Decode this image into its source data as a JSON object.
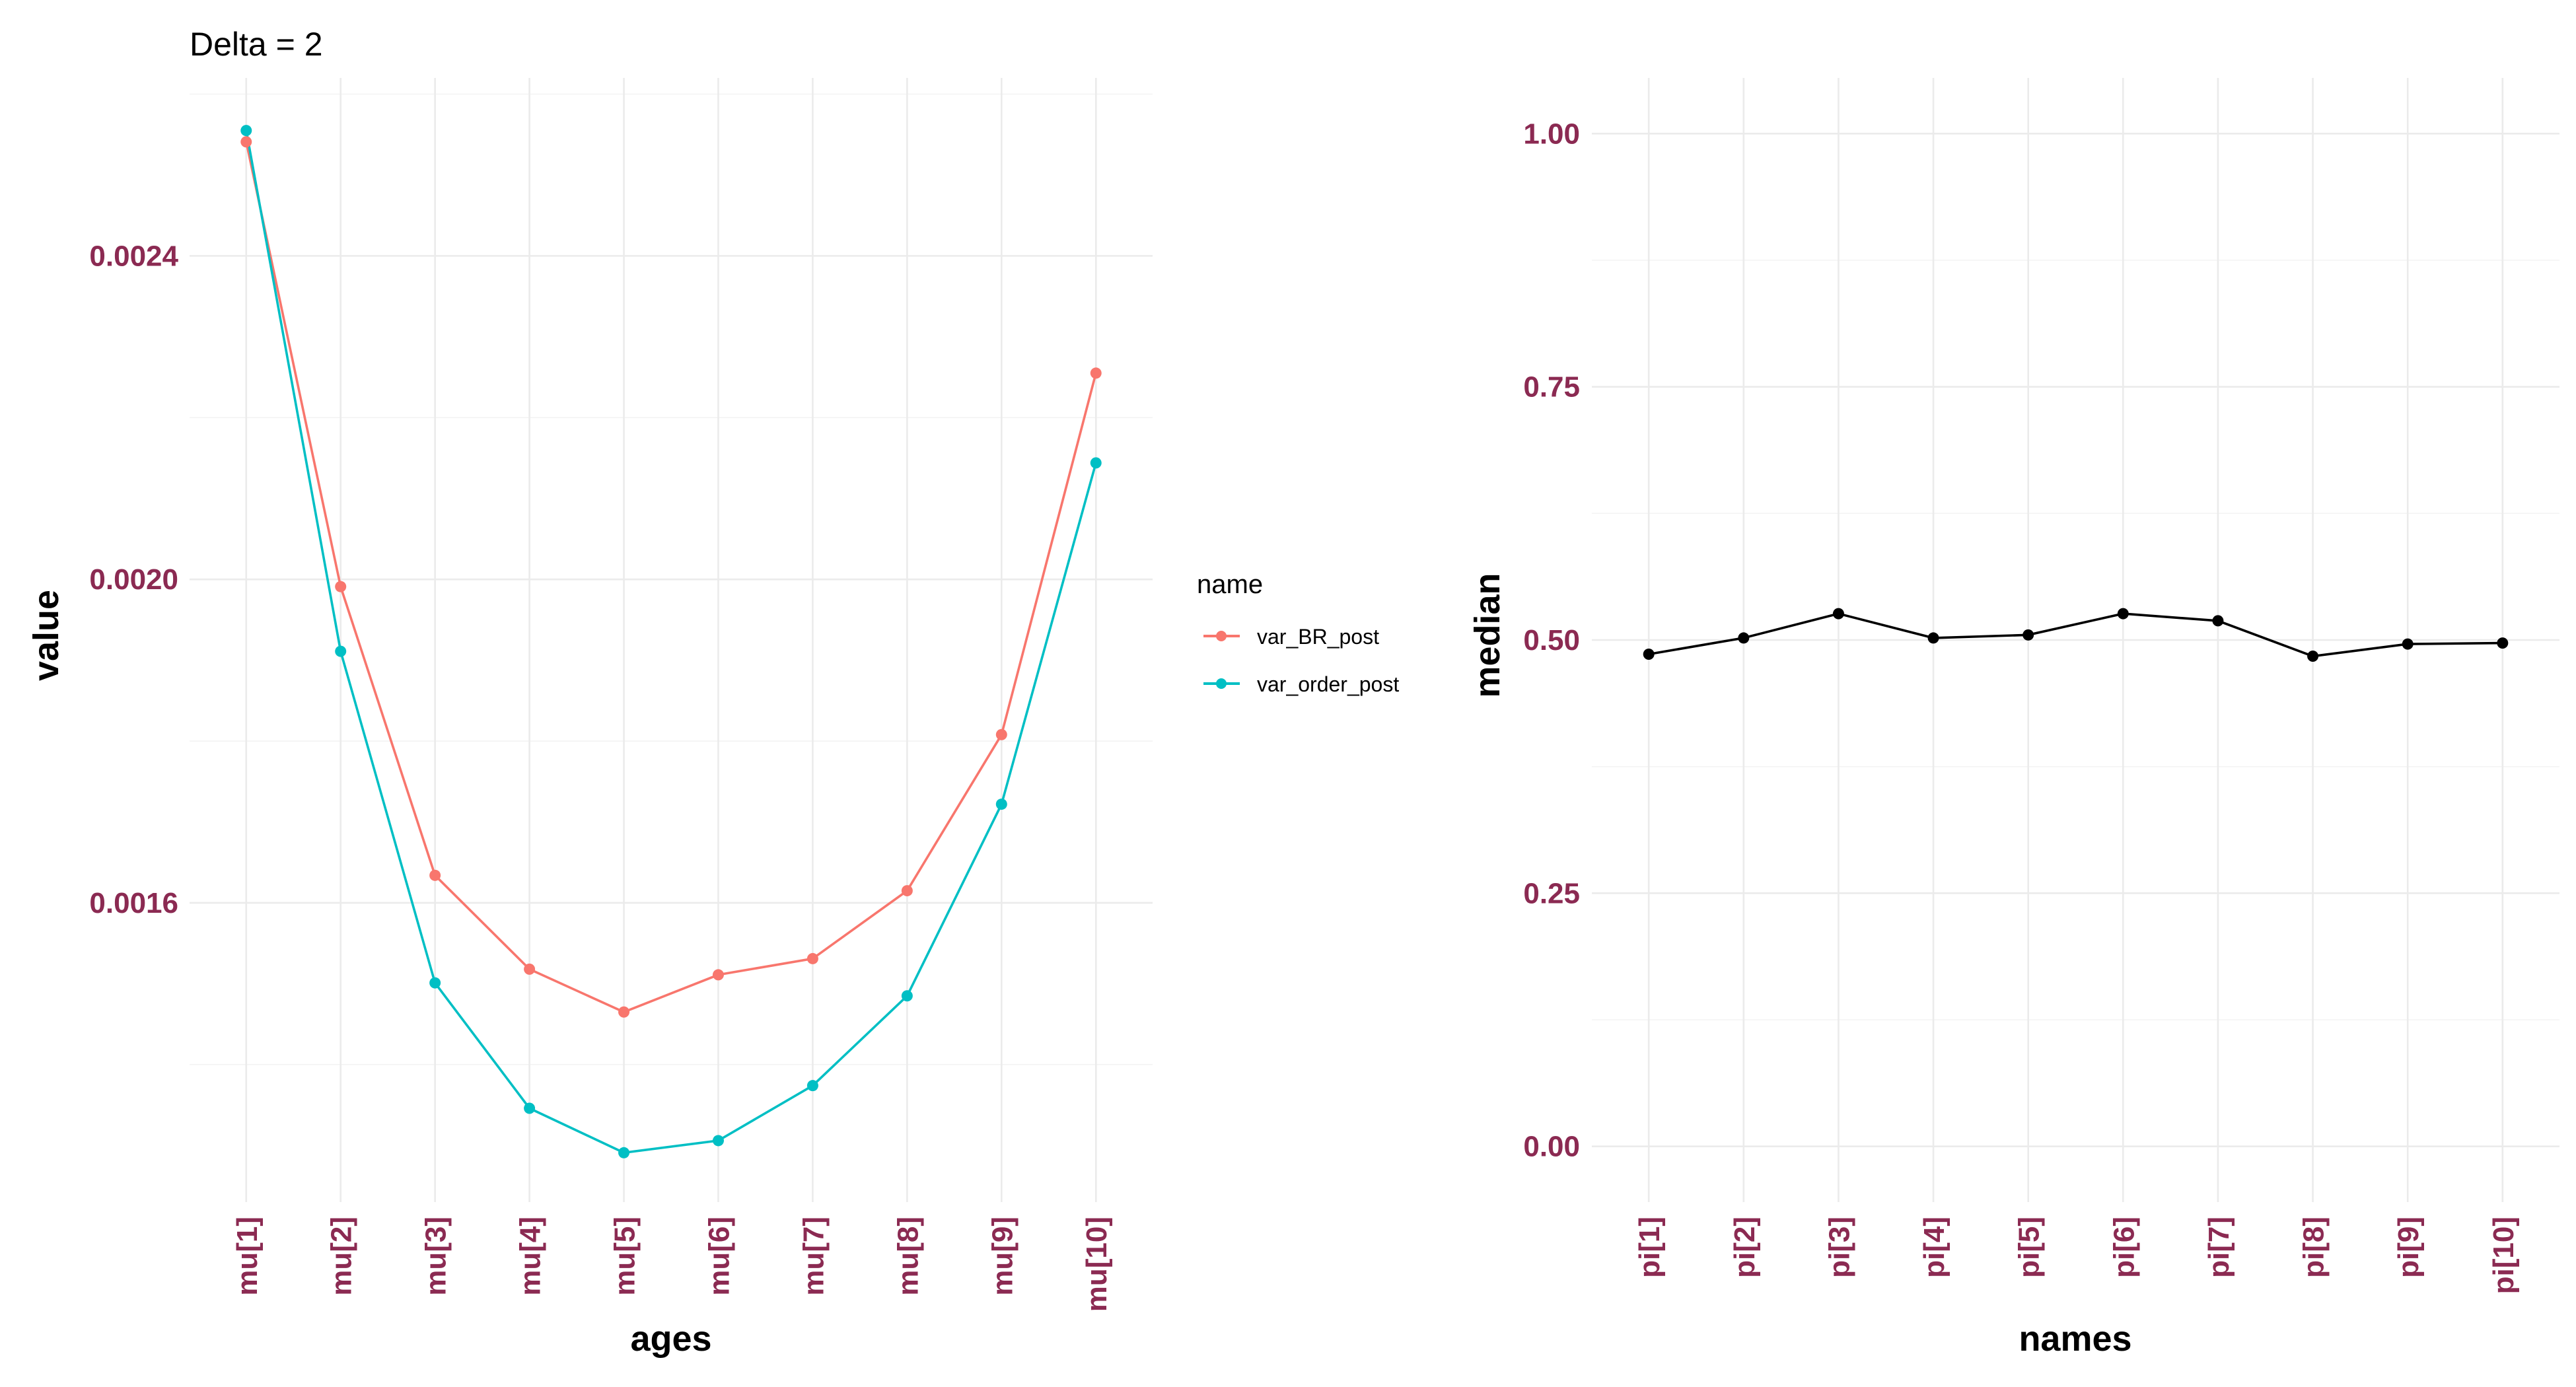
{
  "chart_data": [
    {
      "type": "line",
      "title": "Delta = 2",
      "xlabel": "ages",
      "ylabel": "value",
      "categories": [
        "mu[1]",
        "mu[2]",
        "mu[3]",
        "mu[4]",
        "mu[5]",
        "mu[6]",
        "mu[7]",
        "mu[8]",
        "mu[9]",
        "mu[10]"
      ],
      "ylim": [
        0.00123,
        0.00262
      ],
      "yticks": [
        0.0016,
        0.002,
        0.0024
      ],
      "ytick_labels": [
        "0.0016",
        "0.0020",
        "0.0024"
      ],
      "grid": true,
      "legend": {
        "title": "name",
        "position": "right"
      },
      "series": [
        {
          "name": "var_BR_post",
          "color": "#f8766d",
          "values": [
            0.002541,
            0.001991,
            0.001634,
            0.001518,
            0.001465,
            0.001511,
            0.001531,
            0.001615,
            0.001808,
            0.002255
          ]
        },
        {
          "name": "var_order_post",
          "color": "#00bfc4",
          "values": [
            0.002555,
            0.001911,
            0.001501,
            0.001346,
            0.001291,
            0.001306,
            0.001374,
            0.001485,
            0.001722,
            0.002144
          ]
        }
      ]
    },
    {
      "type": "line",
      "title": "",
      "xlabel": "names",
      "ylabel": "median",
      "categories": [
        "pi[1]",
        "pi[2]",
        "pi[3]",
        "pi[4]",
        "pi[5]",
        "pi[6]",
        "pi[7]",
        "pi[8]",
        "pi[9]",
        "pi[10]"
      ],
      "ylim": [
        -0.055,
        1.055
      ],
      "yticks": [
        0.0,
        0.25,
        0.5,
        0.75,
        1.0
      ],
      "ytick_labels": [
        "0.00",
        "0.25",
        "0.50",
        "0.75",
        "1.00"
      ],
      "grid": true,
      "series": [
        {
          "name": "",
          "color": "#000000",
          "values": [
            0.486,
            0.502,
            0.526,
            0.502,
            0.505,
            0.526,
            0.519,
            0.484,
            0.496,
            0.497
          ]
        }
      ]
    }
  ]
}
